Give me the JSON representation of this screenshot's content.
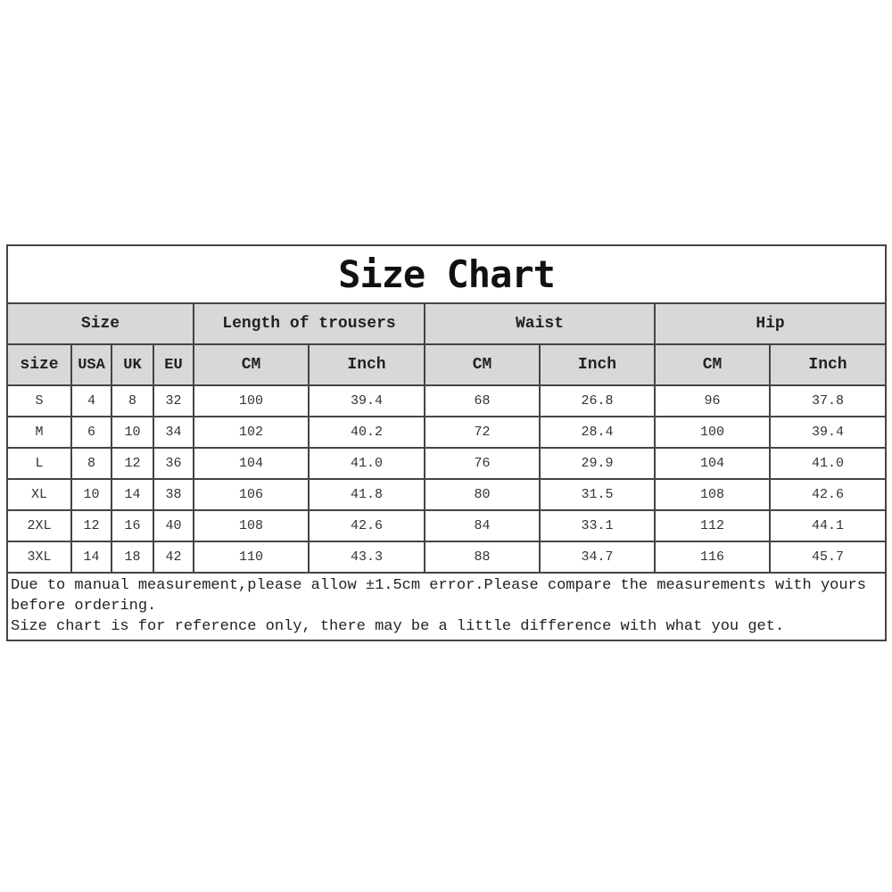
{
  "title": "Size Chart",
  "group_headers": [
    "Size",
    "Length of trousers",
    "Waist",
    "Hip"
  ],
  "sub_headers": [
    "size",
    "USA",
    "UK",
    "EU",
    "CM",
    "Inch",
    "CM",
    "Inch",
    "CM",
    "Inch"
  ],
  "rows": [
    [
      "S",
      "4",
      "8",
      "32",
      "100",
      "39.4",
      "68",
      "26.8",
      "96",
      "37.8"
    ],
    [
      "M",
      "6",
      "10",
      "34",
      "102",
      "40.2",
      "72",
      "28.4",
      "100",
      "39.4"
    ],
    [
      "L",
      "8",
      "12",
      "36",
      "104",
      "41.0",
      "76",
      "29.9",
      "104",
      "41.0"
    ],
    [
      "XL",
      "10",
      "14",
      "38",
      "106",
      "41.8",
      "80",
      "31.5",
      "108",
      "42.6"
    ],
    [
      "2XL",
      "12",
      "16",
      "40",
      "108",
      "42.6",
      "84",
      "33.1",
      "112",
      "44.1"
    ],
    [
      "3XL",
      "14",
      "18",
      "42",
      "110",
      "43.3",
      "88",
      "34.7",
      "116",
      "45.7"
    ]
  ],
  "notes": [
    "Due to manual measurement,please allow ±1.5cm error.Please compare the measurements with yours",
    "before ordering.",
    "Size chart is for reference only, there may be a little difference with what you get."
  ],
  "colors": {
    "header_bg": "#d8d8d8",
    "border": "#444444"
  }
}
